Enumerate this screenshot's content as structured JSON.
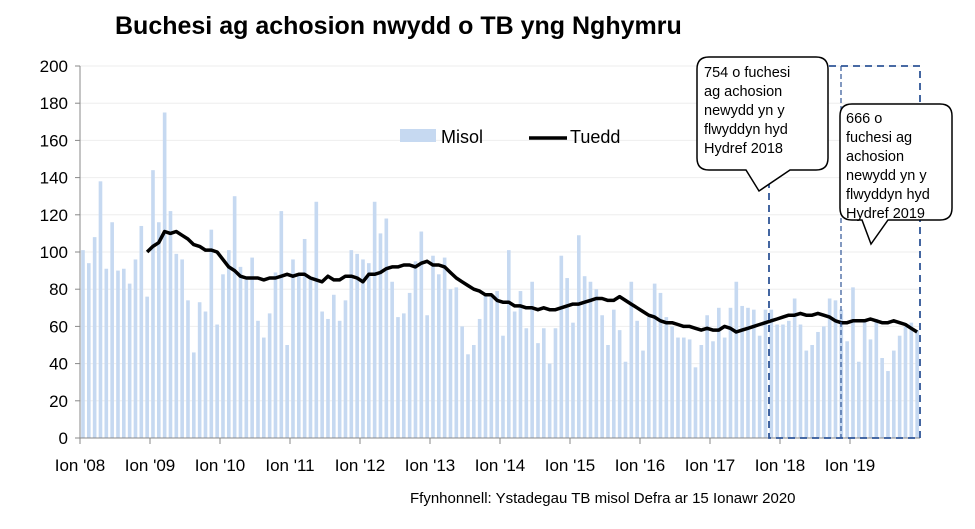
{
  "chart_data": {
    "type": "bar",
    "title": "Buchesi ag achosion nwydd o TB yng Nghymru",
    "xlabel": "",
    "ylabel": "",
    "ylim": [
      0,
      200
    ],
    "yticks": [
      0,
      20,
      40,
      60,
      80,
      100,
      120,
      140,
      160,
      180,
      200
    ],
    "xtick_labels": [
      "Ion '08",
      "Ion '09",
      "Ion '10",
      "Ion '11",
      "Ion '12",
      "Ion '13",
      "Ion '14",
      "Ion '15",
      "Ion '16",
      "Ion '17",
      "Ion '18",
      "Ion '19"
    ],
    "grid": true,
    "legend_position": "top-center",
    "x_start": "2008-01",
    "series": [
      {
        "name": "Misol",
        "type": "bar",
        "color": "#c6d9f1",
        "values": [
          101,
          94,
          108,
          138,
          91,
          116,
          90,
          91,
          83,
          96,
          114,
          76,
          144,
          116,
          175,
          122,
          99,
          96,
          74,
          46,
          73,
          68,
          112,
          61,
          88,
          101,
          130,
          92,
          85,
          97,
          63,
          54,
          67,
          89,
          122,
          50,
          96,
          88,
          107,
          85,
          127,
          68,
          64,
          77,
          63,
          74,
          101,
          99,
          96,
          94,
          127,
          110,
          118,
          84,
          65,
          67,
          78,
          95,
          111,
          66,
          98,
          88,
          97,
          80,
          81,
          60,
          45,
          50,
          64,
          78,
          76,
          79,
          55,
          101,
          68,
          79,
          59,
          84,
          51,
          59,
          40,
          59,
          98,
          86,
          62,
          109,
          87,
          84,
          80,
          66,
          50,
          69,
          58,
          41,
          84,
          63,
          47,
          65,
          83,
          78,
          65,
          60,
          54,
          54,
          53,
          38,
          50,
          66,
          52,
          70,
          54,
          70,
          84,
          71,
          70,
          69,
          55,
          69,
          69,
          61,
          61,
          63,
          75,
          61,
          47,
          50,
          57,
          60,
          75,
          74,
          69,
          52,
          81,
          41,
          64,
          53,
          64,
          43,
          36,
          47,
          55,
          60,
          62,
          58
        ]
      },
      {
        "name": "Tuedd",
        "type": "line",
        "color": "#000000",
        "start": "2008-12",
        "values": [
          100,
          103,
          105,
          111,
          110,
          111,
          109,
          107,
          104,
          103,
          101,
          101,
          100,
          96,
          92,
          90,
          87,
          86,
          86,
          86,
          85,
          86,
          86,
          87,
          88,
          87,
          88,
          88,
          86,
          85,
          84,
          87,
          85,
          85,
          87,
          87,
          86,
          84,
          88,
          88,
          89,
          91,
          92,
          92,
          93,
          93,
          92,
          94,
          95,
          93,
          93,
          92,
          89,
          86,
          84,
          82,
          80,
          79,
          77,
          77,
          74,
          73,
          73,
          71,
          71,
          70,
          70,
          69,
          70,
          69,
          69,
          70,
          71,
          72,
          72,
          73,
          74,
          75,
          75,
          74,
          74,
          76,
          74,
          72,
          70,
          68,
          66,
          65,
          63,
          62,
          62,
          61,
          60,
          60,
          59,
          58,
          59,
          58,
          58,
          60,
          59,
          57,
          58,
          59,
          60,
          61,
          62,
          63,
          64,
          65,
          66,
          66,
          67,
          66,
          66,
          67,
          66,
          65,
          63,
          62,
          62,
          63,
          63,
          63,
          64,
          63,
          62,
          62,
          63,
          62,
          61,
          59,
          57
        ]
      }
    ],
    "annotations": [
      {
        "text": "754 o fuchesi ag achosion newydd yn y flwyddyn hyd Hydref 2018",
        "lines": [
          "754 o fuchesi",
          "ag achosion",
          "newydd yn y",
          "flwyddyn hyd",
          "Hydref 2018"
        ]
      },
      {
        "text": "666 o fuchesi ag achosion newydd yn y flwyddyn hyd Hydref 2019",
        "lines": [
          "666 o",
          "fuchesi ag",
          "achosion",
          "newydd yn y",
          "flwyddyn hyd",
          "Hydref 2019"
        ]
      }
    ],
    "source": "Ffynhonnell: Ystadegau TB misol Defra ar 15 Ionawr 2020"
  }
}
